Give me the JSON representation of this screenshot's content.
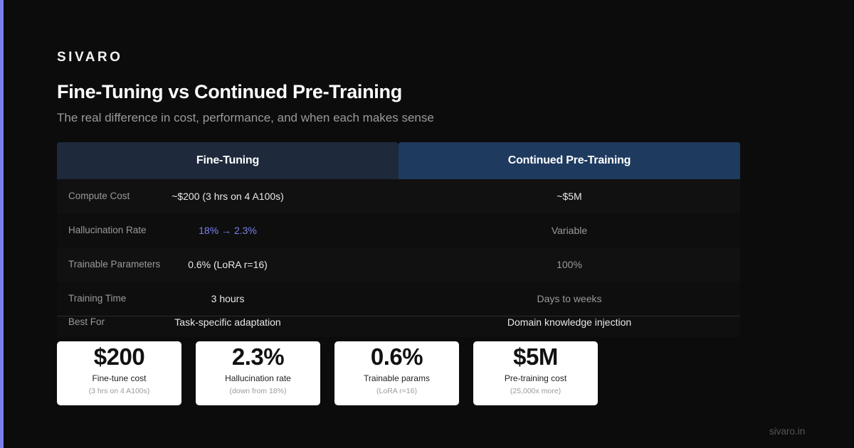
{
  "brand": "SIVARO",
  "title": "Fine-Tuning vs Continued Pre-Training",
  "subtitle": "The real difference in cost, performance, and when each makes sense",
  "colors": {
    "accent": "#7b80ee",
    "ft_header": "#1e293b",
    "cpt_header": "#1e3a5f",
    "background": "#0c0c0c"
  },
  "table": {
    "headers": [
      "Fine-Tuning",
      "Continued Pre-Training"
    ],
    "rows": [
      {
        "label": "Compute Cost",
        "fine_tuning": "~$200 (3 hrs on 4 A100s)",
        "pretraining": "~$5M"
      },
      {
        "label": "Hallucination Rate",
        "fine_tuning": "18% → 2.3%",
        "pretraining": "Variable"
      },
      {
        "label": "Trainable Parameters",
        "fine_tuning": "0.6% (LoRA r=16)",
        "pretraining": "100%"
      },
      {
        "label": "Training Time",
        "fine_tuning": "3 hours",
        "pretraining": "Days to weeks"
      },
      {
        "label": "Best For",
        "fine_tuning": "Task-specific adaptation",
        "pretraining": "Domain knowledge injection"
      }
    ]
  },
  "cards": [
    {
      "value": "$200",
      "caption": "Fine-tune cost",
      "note": "(3 hrs on 4 A100s)"
    },
    {
      "value": "2.3%",
      "caption": "Hallucination rate",
      "note": "(down from 18%)"
    },
    {
      "value": "0.6%",
      "caption": "Trainable params",
      "note": "(LoRA r=16)"
    },
    {
      "value": "$5M",
      "caption": "Pre-training cost",
      "note": "(25,000x more)"
    }
  ],
  "footer": "sivaro.in"
}
